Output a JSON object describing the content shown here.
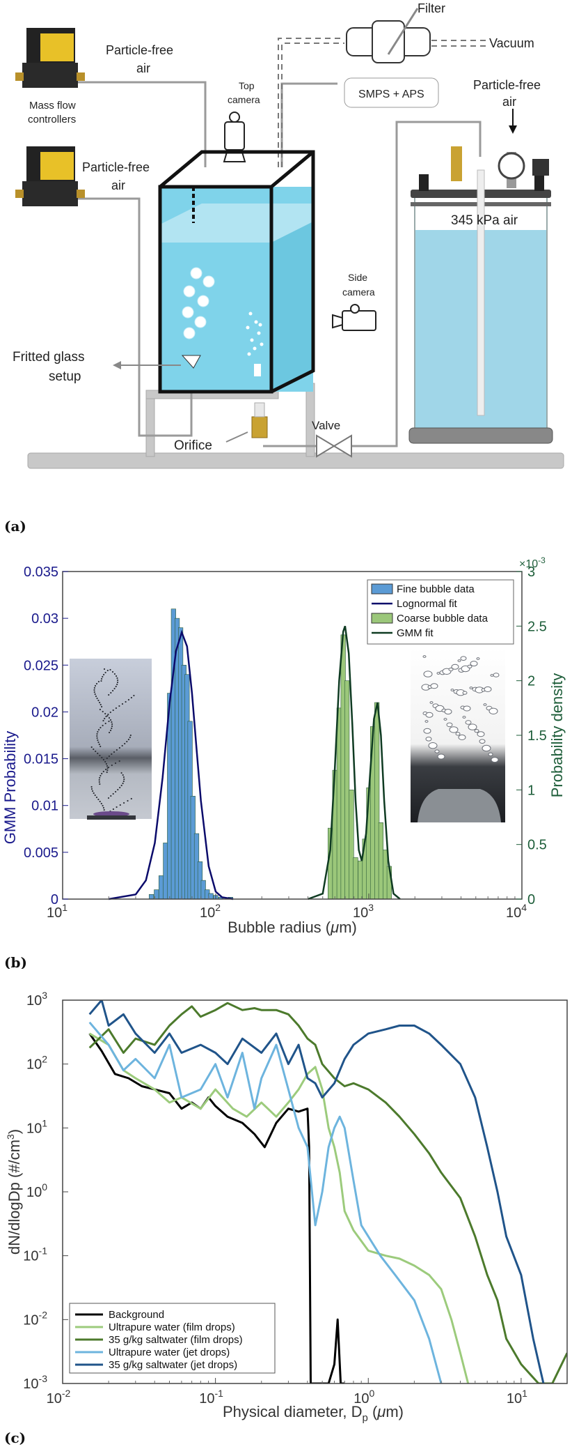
{
  "panel_a": {
    "letter": "(a)",
    "labels": {
      "filter": "Filter",
      "vacuum": "Vacuum",
      "particle_free_air_1": [
        "Particle-free",
        "air"
      ],
      "particle_free_air_2": [
        "Particle-free",
        "air"
      ],
      "particle_free_air_3": [
        "Particle-free",
        "air"
      ],
      "mass_flow_controllers": [
        "Mass flow",
        "controllers"
      ],
      "top_camera": [
        "Top",
        "camera"
      ],
      "smps_aps": "SMPS + APS",
      "pressure": "345 kPa air",
      "side_camera": [
        "Side",
        "camera"
      ],
      "fritted_glass": [
        "Fritted glass",
        "setup"
      ],
      "orifice": "Orifice",
      "valve": "Valve"
    },
    "colors": {
      "water": "#7fd3ea",
      "pipe": "#c8c8c8"
    }
  },
  "panel_b": {
    "letter": "(b)",
    "left_ylabel": "GMM Probability",
    "right_ylabel": "Probability density",
    "right_exponent": "×10",
    "right_exponent_power": "-3",
    "xlabel_pre": "Bubble  radius  (",
    "xlabel_mu": "μ",
    "xlabel_post": "m)",
    "left_ticks": [
      "0",
      "0.005",
      "0.01",
      "0.015",
      "0.02",
      "0.025",
      "0.03",
      "0.035"
    ],
    "right_ticks": [
      "0",
      "0.5",
      "1",
      "1.5",
      "2",
      "2.5",
      "3"
    ],
    "x_ticks": [
      {
        "base": "10",
        "exp": "1"
      },
      {
        "base": "10",
        "exp": "2"
      },
      {
        "base": "10",
        "exp": "3"
      },
      {
        "base": "10",
        "exp": "4"
      }
    ],
    "legend": [
      "Fine bubble data",
      "Lognormal fit",
      "Coarse bubble data",
      "GMM fit"
    ],
    "colors": {
      "left_axis": "#1a1a8c",
      "right_axis": "#1e5e3a",
      "fine_bar": "#5b9bd5",
      "coarse_bar": "#9bc77a",
      "lognormal": "#0b0b6b",
      "gmm": "#0f3b22"
    }
  },
  "panel_c": {
    "letter": "(c)",
    "ylabel_pre": "dN/dlogDp  (#/cm",
    "ylabel_sup": "3",
    "ylabel_post": ")",
    "xlabel_pre": "Physical  diameter,  D",
    "xlabel_sub": "p",
    "xlabel_mid": "  (",
    "xlabel_mu": "μ",
    "xlabel_post": "m)",
    "y_ticks": [
      {
        "base": "10",
        "exp": "3"
      },
      {
        "base": "10",
        "exp": "2"
      },
      {
        "base": "10",
        "exp": "1"
      },
      {
        "base": "10",
        "exp": "0"
      },
      {
        "base": "10",
        "exp": "-1"
      },
      {
        "base": "10",
        "exp": "-2"
      },
      {
        "base": "10",
        "exp": "-3"
      }
    ],
    "x_ticks": [
      {
        "base": "10",
        "exp": "-2"
      },
      {
        "base": "10",
        "exp": "-1"
      },
      {
        "base": "10",
        "exp": "0"
      },
      {
        "base": "10",
        "exp": "1"
      }
    ],
    "legend": [
      "Background",
      "Ultrapure water (film drops)",
      "35 g/kg saltwater (film drops)",
      "Ultrapure water (jet drops)",
      "35 g/kg saltwater (jet drops)"
    ]
  },
  "chart_data": [
    {
      "type": "bar",
      "panel": "b",
      "xscale": "log",
      "xlim": [
        10,
        10000
      ],
      "ylim_left": [
        0,
        0.035
      ],
      "ylim_right": [
        0,
        3
      ],
      "right_axis_multiplier": "1e-3",
      "xlabel": "Bubble radius (μm)",
      "ylabel_left": "GMM Probability",
      "ylabel_right": "Probability density",
      "grid": false,
      "legend_position": "top-right",
      "series": [
        {
          "name": "Fine bubble data",
          "type": "bar",
          "axis": "left",
          "x": [
            38,
            41,
            44,
            47,
            50,
            53,
            56,
            59,
            62,
            65,
            68,
            71,
            75,
            79,
            83,
            88,
            93,
            100,
            108,
            125
          ],
          "values": [
            0.0005,
            0.001,
            0.0025,
            0.006,
            0.022,
            0.031,
            0.03,
            0.029,
            0.025,
            0.024,
            0.019,
            0.011,
            0.007,
            0.004,
            0.002,
            0.001,
            0.0006,
            0.0004,
            0.0002,
            0.0002
          ]
        },
        {
          "name": "Lognormal fit",
          "type": "line",
          "axis": "left",
          "x": [
            20,
            30,
            35,
            40,
            45,
            50,
            55,
            60,
            65,
            70,
            75,
            80,
            90,
            100,
            110,
            130
          ],
          "values": [
            0,
            0.0005,
            0.002,
            0.006,
            0.013,
            0.021,
            0.0265,
            0.0285,
            0.027,
            0.022,
            0.016,
            0.0105,
            0.0035,
            0.0008,
            0.0002,
            0
          ]
        },
        {
          "name": "Coarse bubble data",
          "type": "bar",
          "axis": "right",
          "x": [
            560,
            600,
            640,
            680,
            720,
            770,
            820,
            880,
            940,
            1000,
            1060,
            1130,
            1200,
            1280,
            1360
          ],
          "values": [
            0.65,
            1.18,
            1.75,
            2.42,
            2.0,
            1.0,
            0.38,
            0.35,
            0.55,
            1.02,
            1.58,
            1.8,
            0.7,
            0.45,
            0.3
          ]
        },
        {
          "name": "GMM fit",
          "type": "line",
          "axis": "right",
          "x": [
            400,
            500,
            560,
            600,
            640,
            680,
            700,
            740,
            780,
            820,
            860,
            900,
            960,
            1020,
            1080,
            1140,
            1200,
            1260,
            1340,
            1450,
            1600
          ],
          "values": [
            0,
            0.05,
            0.45,
            1.2,
            2.0,
            2.45,
            2.5,
            2.25,
            1.6,
            0.9,
            0.45,
            0.35,
            0.6,
            1.15,
            1.65,
            1.8,
            1.5,
            0.9,
            0.35,
            0.05,
            0
          ]
        }
      ]
    },
    {
      "type": "line",
      "panel": "c",
      "xscale": "log",
      "yscale": "log",
      "xlim": [
        0.01,
        20
      ],
      "ylim": [
        0.001,
        1000
      ],
      "xlabel": "Physical diameter, Dp (μm)",
      "ylabel": "dN/dlogDp (#/cm3)",
      "grid": false,
      "legend_position": "bottom-left",
      "series": [
        {
          "name": "Background",
          "color": "#000000",
          "x": [
            0.015,
            0.018,
            0.022,
            0.027,
            0.033,
            0.04,
            0.05,
            0.06,
            0.07,
            0.08,
            0.09,
            0.1,
            0.12,
            0.15,
            0.18,
            0.21,
            0.25,
            0.3,
            0.35,
            0.4,
            0.41,
            0.42,
            0.5,
            0.55,
            0.6,
            0.63,
            0.66,
            0.7
          ],
          "values": [
            300,
            160,
            70,
            60,
            45,
            40,
            35,
            20,
            25,
            20,
            30,
            22,
            15,
            12,
            8,
            5,
            12,
            20,
            18,
            20,
            5,
            0.001,
            0.001,
            0.001,
            0.002,
            0.01,
            0.001,
            0.001
          ]
        },
        {
          "name": "Ultrapure water (film drops)",
          "color": "#9ccb7c",
          "x": [
            0.015,
            0.02,
            0.025,
            0.03,
            0.04,
            0.05,
            0.06,
            0.08,
            0.1,
            0.13,
            0.16,
            0.2,
            0.25,
            0.3,
            0.35,
            0.4,
            0.45,
            0.5,
            0.55,
            0.6,
            0.65,
            0.7,
            0.8,
            1.0,
            1.3,
            1.6,
            2.0,
            2.5,
            3.0,
            3.5,
            4.0,
            4.5
          ],
          "values": [
            300,
            200,
            80,
            60,
            40,
            25,
            30,
            20,
            40,
            20,
            15,
            25,
            15,
            25,
            40,
            70,
            90,
            40,
            10,
            5,
            2,
            0.5,
            0.25,
            0.12,
            0.1,
            0.09,
            0.07,
            0.05,
            0.03,
            0.01,
            0.003,
            0.001
          ]
        },
        {
          "name": "35 g/kg saltwater (film drops)",
          "color": "#4c7a2c",
          "x": [
            0.015,
            0.02,
            0.025,
            0.03,
            0.04,
            0.05,
            0.06,
            0.07,
            0.08,
            0.1,
            0.12,
            0.15,
            0.18,
            0.2,
            0.25,
            0.3,
            0.35,
            0.4,
            0.45,
            0.5,
            0.6,
            0.7,
            0.8,
            1.0,
            1.3,
            1.6,
            2.0,
            2.5,
            3.0,
            4.0,
            5.0,
            6.0,
            7.0,
            8.0,
            10,
            13,
            16,
            20
          ],
          "values": [
            180,
            350,
            150,
            250,
            200,
            400,
            600,
            800,
            550,
            700,
            900,
            700,
            750,
            700,
            700,
            600,
            400,
            250,
            200,
            100,
            60,
            45,
            50,
            40,
            25,
            15,
            8,
            4,
            2,
            0.8,
            0.2,
            0.05,
            0.02,
            0.005,
            0.002,
            0.001,
            0.001,
            0.003
          ]
        },
        {
          "name": "Ultrapure water (jet drops)",
          "color": "#6db4de",
          "x": [
            0.015,
            0.02,
            0.025,
            0.03,
            0.04,
            0.05,
            0.06,
            0.08,
            0.1,
            0.12,
            0.15,
            0.18,
            0.2,
            0.25,
            0.3,
            0.35,
            0.4,
            0.45,
            0.5,
            0.55,
            0.6,
            0.65,
            0.7,
            0.8,
            0.9,
            1.0,
            1.2,
            1.5,
            2.0,
            2.5,
            3.0
          ],
          "values": [
            450,
            200,
            80,
            120,
            60,
            200,
            30,
            40,
            100,
            30,
            150,
            20,
            60,
            200,
            40,
            10,
            5,
            0.3,
            1,
            5,
            10,
            15,
            10,
            1.5,
            0.3,
            0.2,
            0.1,
            0.05,
            0.02,
            0.005,
            0.001
          ]
        },
        {
          "name": "35 g/kg saltwater (jet drops)",
          "color": "#20548a",
          "x": [
            0.015,
            0.018,
            0.02,
            0.025,
            0.03,
            0.04,
            0.05,
            0.06,
            0.08,
            0.1,
            0.12,
            0.15,
            0.2,
            0.25,
            0.3,
            0.35,
            0.4,
            0.45,
            0.5,
            0.6,
            0.7,
            0.8,
            1.0,
            1.3,
            1.6,
            2.0,
            2.5,
            3.0,
            4.0,
            5.0,
            6.0,
            7.0,
            8.0,
            10,
            12,
            14
          ],
          "values": [
            600,
            1000,
            400,
            600,
            300,
            150,
            300,
            150,
            200,
            150,
            100,
            250,
            150,
            300,
            100,
            200,
            60,
            50,
            30,
            50,
            120,
            200,
            300,
            350,
            400,
            400,
            300,
            200,
            100,
            30,
            5,
            1,
            0.2,
            0.05,
            0.005,
            0.001
          ]
        }
      ]
    }
  ]
}
